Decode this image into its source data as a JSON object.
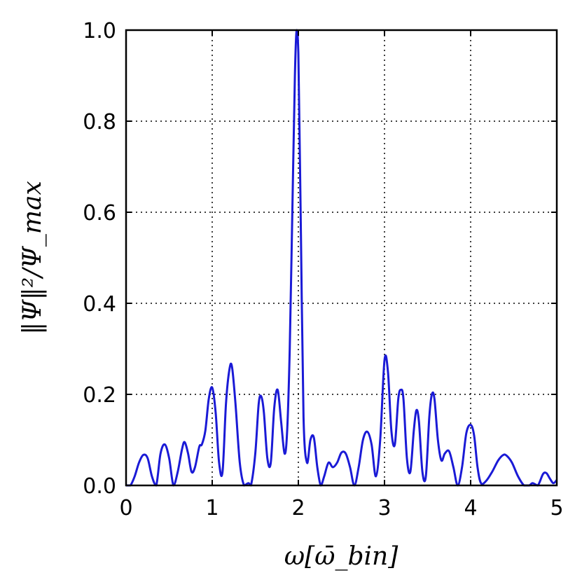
{
  "chart_data": {
    "type": "line",
    "xlabel": "ω[ω̄_bin]",
    "ylabel": "‖Ψ‖²/Ψ_max",
    "xlim": [
      0,
      5
    ],
    "ylim": [
      0,
      1.0
    ],
    "xticks": [
      "0",
      "1",
      "2",
      "3",
      "4",
      "5"
    ],
    "yticks": [
      "0.0",
      "0.2",
      "0.4",
      "0.6",
      "0.8",
      "1.0"
    ],
    "grid": true,
    "series": [
      {
        "color": "#1a1ad6",
        "x": [
          0.0,
          0.05,
          0.1,
          0.15,
          0.2,
          0.25,
          0.3,
          0.35,
          0.4,
          0.45,
          0.5,
          0.55,
          0.6,
          0.65,
          0.68,
          0.72,
          0.76,
          0.8,
          0.85,
          0.88,
          0.92,
          0.96,
          1.0,
          1.04,
          1.08,
          1.12,
          1.16,
          1.2,
          1.23,
          1.27,
          1.32,
          1.37,
          1.42,
          1.45,
          1.5,
          1.54,
          1.57,
          1.6,
          1.64,
          1.68,
          1.72,
          1.76,
          1.8,
          1.84,
          1.87,
          1.9,
          1.93,
          1.96,
          1.98,
          2.0,
          2.03,
          2.06,
          2.1,
          2.14,
          2.18,
          2.22,
          2.26,
          2.3,
          2.35,
          2.4,
          2.45,
          2.5,
          2.55,
          2.6,
          2.65,
          2.7,
          2.75,
          2.8,
          2.85,
          2.9,
          2.95,
          3.0,
          3.04,
          3.08,
          3.12,
          3.16,
          3.19,
          3.22,
          3.26,
          3.3,
          3.34,
          3.37,
          3.4,
          3.44,
          3.48,
          3.52,
          3.55,
          3.58,
          3.62,
          3.66,
          3.7,
          3.75,
          3.8,
          3.85,
          3.9,
          3.95,
          4.0,
          4.04,
          4.08,
          4.12,
          4.18,
          4.25,
          4.32,
          4.38,
          4.42,
          4.48,
          4.55,
          4.62,
          4.68,
          4.72,
          4.78,
          4.84,
          4.88,
          4.92,
          4.96,
          5.0
        ],
        "y": [
          0.0,
          0.0,
          0.02,
          0.05,
          0.067,
          0.06,
          0.02,
          0.0,
          0.07,
          0.09,
          0.06,
          0.0,
          0.03,
          0.08,
          0.095,
          0.07,
          0.03,
          0.04,
          0.085,
          0.09,
          0.12,
          0.19,
          0.215,
          0.16,
          0.05,
          0.03,
          0.18,
          0.255,
          0.26,
          0.18,
          0.05,
          0.0,
          0.005,
          0.0,
          0.07,
          0.18,
          0.195,
          0.16,
          0.06,
          0.05,
          0.17,
          0.21,
          0.14,
          0.07,
          0.12,
          0.3,
          0.6,
          0.9,
          1.0,
          0.95,
          0.55,
          0.15,
          0.05,
          0.1,
          0.105,
          0.04,
          0.0,
          0.02,
          0.05,
          0.04,
          0.05,
          0.072,
          0.07,
          0.04,
          0.0,
          0.04,
          0.1,
          0.118,
          0.09,
          0.02,
          0.1,
          0.275,
          0.25,
          0.12,
          0.09,
          0.19,
          0.21,
          0.19,
          0.06,
          0.03,
          0.12,
          0.165,
          0.14,
          0.03,
          0.02,
          0.15,
          0.2,
          0.19,
          0.1,
          0.055,
          0.07,
          0.075,
          0.04,
          0.0,
          0.04,
          0.115,
          0.133,
          0.11,
          0.04,
          0.005,
          0.01,
          0.03,
          0.055,
          0.067,
          0.065,
          0.05,
          0.02,
          0.0,
          0.0,
          0.005,
          0.0,
          0.025,
          0.027,
          0.015,
          0.005,
          0.012
        ]
      }
    ]
  }
}
